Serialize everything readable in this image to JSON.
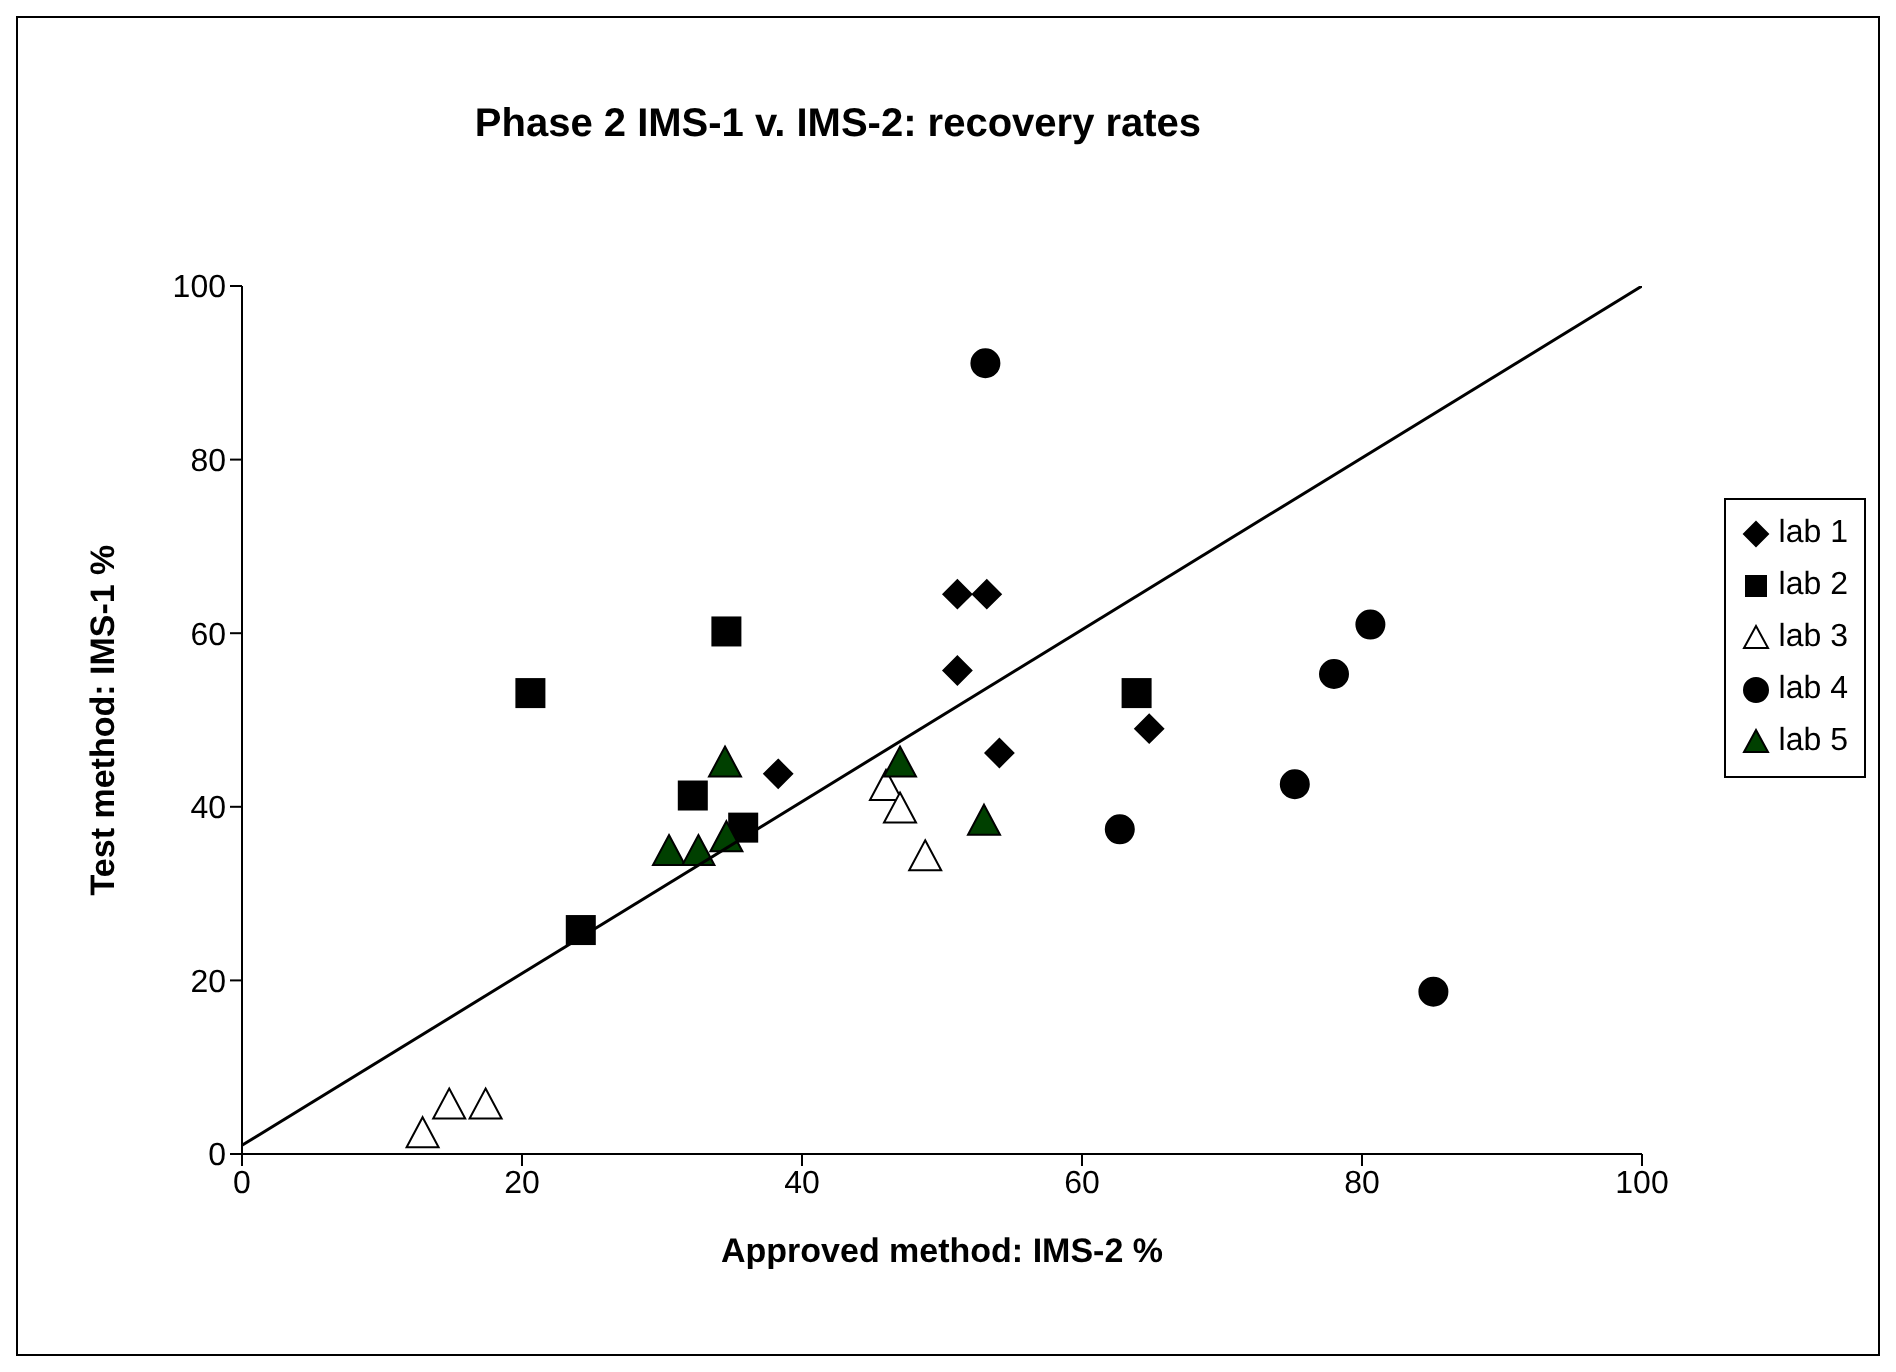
{
  "chart_data": {
    "type": "scatter",
    "title": "Phase 2 IMS-1 v. IMS-2: recovery rates",
    "xlabel": "Approved method: IMS-2 %",
    "ylabel": "Test method: IMS-1 %",
    "xlim": [
      0,
      100
    ],
    "ylim": [
      0,
      100
    ],
    "xticks": [
      0,
      20,
      40,
      60,
      80,
      100
    ],
    "yticks": [
      0,
      20,
      40,
      60,
      80,
      100
    ],
    "grid": false,
    "legend": "right",
    "series": [
      {
        "name": "lab 1",
        "color": "#000000",
        "marker": "diamond",
        "x": [
          38.3,
          51.1,
          53.2,
          51.1,
          54.1,
          64.8
        ],
        "values": [
          43.8,
          64.5,
          64.5,
          55.7,
          46.2,
          49
        ]
      },
      {
        "name": "lab 2",
        "color": "#000000",
        "marker": "square",
        "x": [
          20.6,
          34.6,
          32.2,
          35.8,
          24.2,
          63.9
        ],
        "values": [
          53.1,
          60.2,
          41.3,
          37.6,
          25.8,
          53.1
        ]
      },
      {
        "name": "lab 3",
        "color": "#ffffff",
        "marker": "triangle",
        "x": [
          12.9,
          14.8,
          17.4,
          46,
          47,
          48.8
        ],
        "values": [
          2.4,
          5.7,
          5.7,
          42.4,
          39.8,
          34.3
        ]
      },
      {
        "name": "lab 4",
        "color": "#000000",
        "marker": "circle",
        "x": [
          53.1,
          80.6,
          78,
          75.2,
          62.7,
          85.1
        ],
        "values": [
          91.1,
          61,
          55.3,
          42.6,
          37.4,
          18.7
        ]
      },
      {
        "name": "lab 5",
        "color": "#004000",
        "marker": "triangle",
        "x": [
          34.5,
          30.5,
          32.6,
          34.6,
          47,
          53
        ],
        "values": [
          45.1,
          34.9,
          34.9,
          36.5,
          45.1,
          38.4
        ]
      },
      {
        "type": "line",
        "color": "#000000",
        "marker": "none",
        "x": [
          0,
          100
        ],
        "values": [
          1,
          100
        ]
      }
    ]
  }
}
